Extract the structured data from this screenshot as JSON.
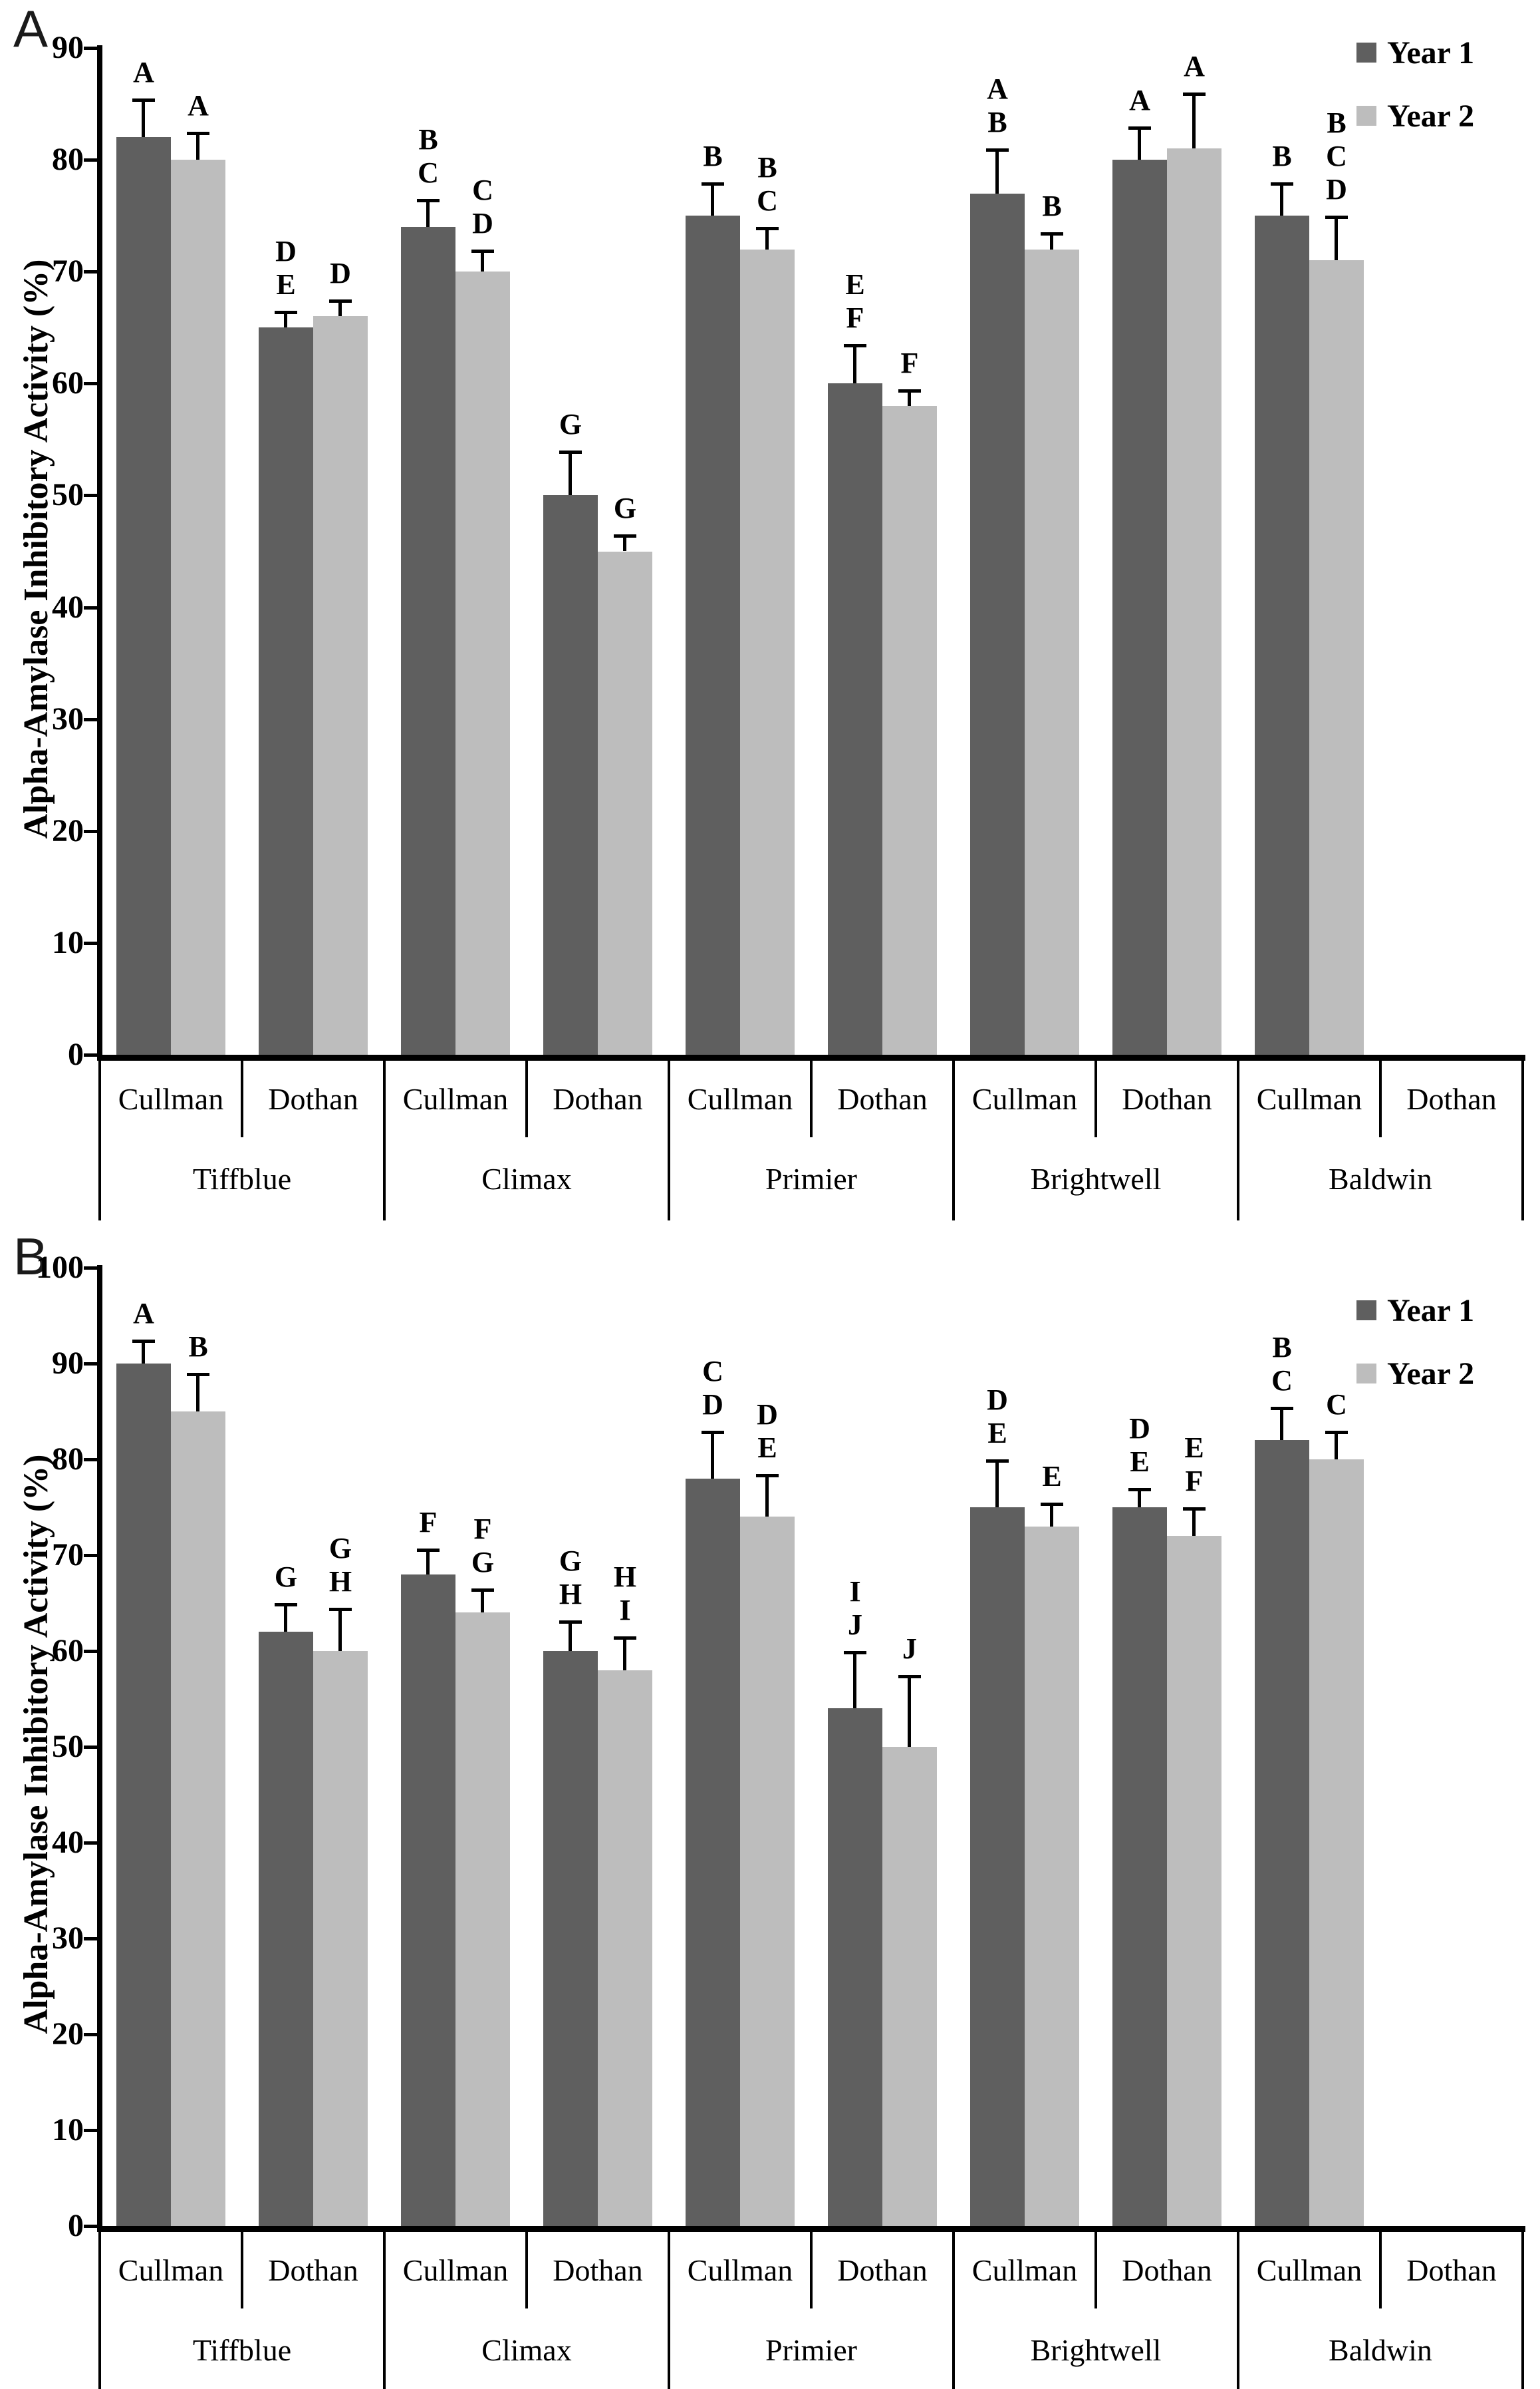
{
  "figure_type": "two-panel grouped bar figure",
  "chart_data": [
    {
      "type": "bar",
      "panel_label": "A",
      "title": "",
      "xlabel": "",
      "ylabel": "Alpha-Amylase Inhibitory Activity (%)",
      "ylim": [
        0,
        90
      ],
      "yticks": [
        "90",
        "80",
        "70",
        "60",
        "50",
        "40",
        "30",
        "20",
        "10",
        "0"
      ],
      "grid": "off",
      "legend_position": "top-right",
      "series_names": [
        "Year 1",
        "Year 2"
      ],
      "series_colors": [
        "#5f5f5f",
        "#bdbdbd"
      ],
      "groups": [
        {
          "cultivar": "Tiffblue",
          "locations": [
            {
              "name": "Cullman",
              "bars": [
                {
                  "series": "Year 1",
                  "value": 82,
                  "err": 3.5,
                  "letters": [
                    "A"
                  ]
                },
                {
                  "series": "Year 2",
                  "value": 80,
                  "err": 2.5,
                  "letters": [
                    "A"
                  ]
                }
              ]
            },
            {
              "name": "Dothan",
              "bars": [
                {
                  "series": "Year 1",
                  "value": 65,
                  "err": 1.5,
                  "letters": [
                    "D",
                    "E"
                  ]
                },
                {
                  "series": "Year 2",
                  "value": 66,
                  "err": 1.5,
                  "letters": [
                    "D"
                  ]
                }
              ]
            }
          ]
        },
        {
          "cultivar": "Climax",
          "locations": [
            {
              "name": "Cullman",
              "bars": [
                {
                  "series": "Year 1",
                  "value": 74,
                  "err": 2.5,
                  "letters": [
                    "B",
                    "C"
                  ]
                },
                {
                  "series": "Year 2",
                  "value": 70,
                  "err": 2,
                  "letters": [
                    "C",
                    "D"
                  ]
                }
              ]
            },
            {
              "name": "Dothan",
              "bars": [
                {
                  "series": "Year 1",
                  "value": 50,
                  "err": 4,
                  "letters": [
                    "G"
                  ]
                },
                {
                  "series": "Year 2",
                  "value": 45,
                  "err": 1.5,
                  "letters": [
                    "G"
                  ]
                }
              ]
            }
          ]
        },
        {
          "cultivar": "Primier",
          "locations": [
            {
              "name": "Cullman",
              "bars": [
                {
                  "series": "Year 1",
                  "value": 75,
                  "err": 3,
                  "letters": [
                    "B"
                  ]
                },
                {
                  "series": "Year 2",
                  "value": 72,
                  "err": 2,
                  "letters": [
                    "B",
                    "C"
                  ]
                }
              ]
            },
            {
              "name": "Dothan",
              "bars": [
                {
                  "series": "Year 1",
                  "value": 60,
                  "err": 3.5,
                  "letters": [
                    "E",
                    "F"
                  ]
                },
                {
                  "series": "Year 2",
                  "value": 58,
                  "err": 1.5,
                  "letters": [
                    "F"
                  ]
                }
              ]
            }
          ]
        },
        {
          "cultivar": "Brightwell",
          "locations": [
            {
              "name": "Cullman",
              "bars": [
                {
                  "series": "Year 1",
                  "value": 77,
                  "err": 4,
                  "letters": [
                    "A",
                    "B"
                  ]
                },
                {
                  "series": "Year 2",
                  "value": 72,
                  "err": 1.5,
                  "letters": [
                    "B"
                  ]
                }
              ]
            },
            {
              "name": "Dothan",
              "bars": [
                {
                  "series": "Year 1",
                  "value": 80,
                  "err": 3,
                  "letters": [
                    "A"
                  ]
                },
                {
                  "series": "Year 2",
                  "value": 81,
                  "err": 5,
                  "letters": [
                    "A"
                  ]
                }
              ]
            }
          ]
        },
        {
          "cultivar": "Baldwin",
          "locations": [
            {
              "name": "Cullman",
              "bars": [
                {
                  "series": "Year 1",
                  "value": 75,
                  "err": 3,
                  "letters": [
                    "B"
                  ]
                },
                {
                  "series": "Year 2",
                  "value": 71,
                  "err": 4,
                  "letters": [
                    "B",
                    "C",
                    "D"
                  ]
                }
              ]
            },
            {
              "name": "Dothan",
              "bars": []
            }
          ]
        }
      ]
    },
    {
      "type": "bar",
      "panel_label": "B",
      "title": "",
      "xlabel": "",
      "ylabel": "Alpha-Amylase Inhibitory Activity (%)",
      "ylim": [
        0,
        100
      ],
      "yticks": [
        "100",
        "90",
        "80",
        "70",
        "60",
        "50",
        "40",
        "30",
        "20",
        "10",
        "0"
      ],
      "grid": "off",
      "legend_position": "top-right",
      "series_names": [
        "Year 1",
        "Year 2"
      ],
      "series_colors": [
        "#5f5f5f",
        "#bdbdbd"
      ],
      "groups": [
        {
          "cultivar": "Tiffblue",
          "locations": [
            {
              "name": "Cullman",
              "bars": [
                {
                  "series": "Year 1",
                  "value": 90,
                  "err": 2.5,
                  "letters": [
                    "A"
                  ]
                },
                {
                  "series": "Year 2",
                  "value": 85,
                  "err": 4,
                  "letters": [
                    "B"
                  ]
                }
              ]
            },
            {
              "name": "Dothan",
              "bars": [
                {
                  "series": "Year 1",
                  "value": 62,
                  "err": 3,
                  "letters": [
                    "G"
                  ]
                },
                {
                  "series": "Year 2",
                  "value": 60,
                  "err": 4.5,
                  "letters": [
                    "G",
                    "H"
                  ]
                }
              ]
            }
          ]
        },
        {
          "cultivar": "Climax",
          "locations": [
            {
              "name": "Cullman",
              "bars": [
                {
                  "series": "Year 1",
                  "value": 68,
                  "err": 2.7,
                  "letters": [
                    "F"
                  ]
                },
                {
                  "series": "Year 2",
                  "value": 64,
                  "err": 2.5,
                  "letters": [
                    "F",
                    "G"
                  ]
                }
              ]
            },
            {
              "name": "Dothan",
              "bars": [
                {
                  "series": "Year 1",
                  "value": 60,
                  "err": 3.2,
                  "letters": [
                    "G",
                    "H"
                  ]
                },
                {
                  "series": "Year 2",
                  "value": 58,
                  "err": 3.5,
                  "letters": [
                    "H",
                    "I"
                  ]
                }
              ]
            }
          ]
        },
        {
          "cultivar": "Primier",
          "locations": [
            {
              "name": "Cullman",
              "bars": [
                {
                  "series": "Year 1",
                  "value": 78,
                  "err": 5,
                  "letters": [
                    "C",
                    "D"
                  ]
                },
                {
                  "series": "Year 2",
                  "value": 74,
                  "err": 4.5,
                  "letters": [
                    "D",
                    "E"
                  ]
                }
              ]
            },
            {
              "name": "Dothan",
              "bars": [
                {
                  "series": "Year 1",
                  "value": 54,
                  "err": 6,
                  "letters": [
                    "I",
                    "J"
                  ]
                },
                {
                  "series": "Year 2",
                  "value": 50,
                  "err": 7.5,
                  "letters": [
                    "J"
                  ]
                }
              ]
            }
          ]
        },
        {
          "cultivar": "Brightwell",
          "locations": [
            {
              "name": "Cullman",
              "bars": [
                {
                  "series": "Year 1",
                  "value": 75,
                  "err": 5,
                  "letters": [
                    "D",
                    "E"
                  ]
                },
                {
                  "series": "Year 2",
                  "value": 73,
                  "err": 2.5,
                  "letters": [
                    "E"
                  ]
                }
              ]
            },
            {
              "name": "Dothan",
              "bars": [
                {
                  "series": "Year 1",
                  "value": 75,
                  "err": 2,
                  "letters": [
                    "D",
                    "E"
                  ]
                },
                {
                  "series": "Year 2",
                  "value": 72,
                  "err": 3,
                  "letters": [
                    "E",
                    "F"
                  ]
                }
              ]
            }
          ]
        },
        {
          "cultivar": "Baldwin",
          "locations": [
            {
              "name": "Cullman",
              "bars": [
                {
                  "series": "Year 1",
                  "value": 82,
                  "err": 3.5,
                  "letters": [
                    "B",
                    "C"
                  ]
                },
                {
                  "series": "Year 2",
                  "value": 80,
                  "err": 3,
                  "letters": [
                    "C"
                  ]
                }
              ]
            },
            {
              "name": "Dothan",
              "bars": []
            }
          ]
        }
      ]
    }
  ]
}
